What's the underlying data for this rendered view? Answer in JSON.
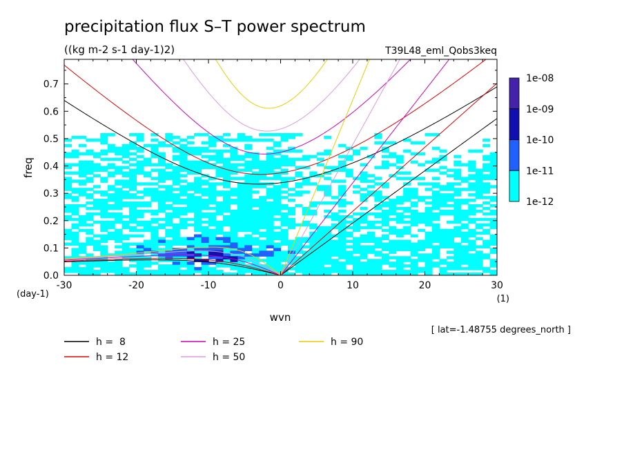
{
  "chart_data": {
    "type": "line",
    "title": "precipitation flux S–T power spectrum",
    "subtitle": "((kg m-2 s-1 day-1)2)",
    "run_label": "T39L48_eml_Qobs3keq",
    "xlabel": "wvn",
    "ylabel": "freq",
    "x_unit": "(1)",
    "y_unit": "(day-1)",
    "xlim": [
      -30,
      30
    ],
    "ylim": [
      0,
      0.79
    ],
    "x_ticks": [
      "-30",
      "-20",
      "-10",
      "0",
      "10",
      "20",
      "30"
    ],
    "y_ticks": [
      "0.0",
      "0.1",
      "0.2",
      "0.3",
      "0.4",
      "0.5",
      "0.6",
      "0.7"
    ],
    "x_tick_values": [
      -30,
      -20,
      -10,
      0,
      10,
      20,
      30
    ],
    "y_tick_values": [
      0,
      0.1,
      0.2,
      0.3,
      0.4,
      0.5,
      0.6,
      0.7
    ],
    "footnote": "[ lat=-1.48755 degrees_north ]",
    "colorbar": {
      "levels": [
        "1e-08",
        "1e-09",
        "1e-10",
        "1e-11",
        "1e-12"
      ],
      "colors": [
        "#4422aa",
        "#1010b0",
        "#2060ff",
        "#00ffff"
      ]
    },
    "series": [
      {
        "name": "h =  8",
        "h": 8,
        "color": "#000000"
      },
      {
        "name": "h = 12",
        "h": 12,
        "color": "#dd0000"
      },
      {
        "name": "h = 25",
        "h": 25,
        "color": "#cc00bb"
      },
      {
        "name": "h = 50",
        "h": 50,
        "color": "#dd99dd"
      },
      {
        "name": "h = 90",
        "h": 90,
        "color": "#eecc00"
      }
    ],
    "contour_regions": [
      {
        "level": "1e-12",
        "color": "#00ffff",
        "x": [
          -30,
          30
        ],
        "y": [
          0.0,
          0.52
        ]
      },
      {
        "level": "1e-11",
        "color": "#2060ff",
        "x": [
          -22,
          -2
        ],
        "y": [
          0.0,
          0.12
        ]
      },
      {
        "level": "1e-10",
        "color": "#1010b0",
        "x": [
          -12,
          -6
        ],
        "y": [
          0.04,
          0.08
        ]
      }
    ]
  }
}
